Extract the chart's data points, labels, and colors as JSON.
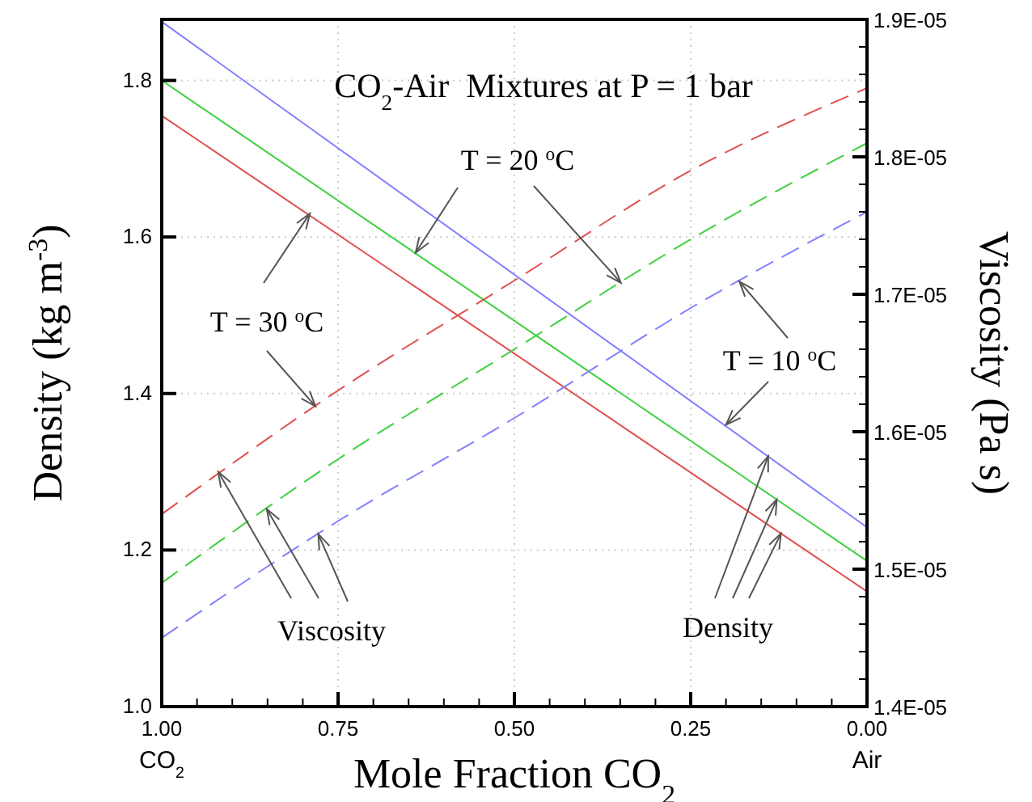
{
  "chart_data": {
    "type": "line",
    "title": "CO$_{2}$-Air  Mixtures at P = 1 bar",
    "xlabel": "Mole Fraction CO$_{2}$",
    "ylabel": "Density (kg m$^{-3}$)",
    "y2label": "Viscosity (Pa s)",
    "xlim": [
      1,
      0
    ],
    "xticks": [
      {
        "value": 1,
        "label": "1.00"
      },
      {
        "value": 0.95,
        "label": null
      },
      {
        "value": 0.9,
        "label": null
      },
      {
        "value": 0.85,
        "label": null
      },
      {
        "value": 0.8,
        "label": null
      },
      {
        "value": 0.75,
        "label": "0.75"
      },
      {
        "value": 0.7,
        "label": null
      },
      {
        "value": 0.65,
        "label": null
      },
      {
        "value": 0.6,
        "label": null
      },
      {
        "value": 0.55,
        "label": null
      },
      {
        "value": 0.5,
        "label": "0.50"
      },
      {
        "value": 0.45,
        "label": null
      },
      {
        "value": 0.4,
        "label": null
      },
      {
        "value": 0.35,
        "label": null
      },
      {
        "value": 0.3,
        "label": null
      },
      {
        "value": 0.25,
        "label": "0.25"
      },
      {
        "value": 0.2,
        "label": null
      },
      {
        "value": 0.15,
        "label": null
      },
      {
        "value": 0.1,
        "label": null
      },
      {
        "value": 0.05,
        "label": null
      },
      {
        "value": 0,
        "label": "0.00"
      }
    ],
    "ylim": [
      1.0,
      1.878
    ],
    "yticks": [
      {
        "value": 1,
        "label": "1.0"
      },
      1.2,
      1.4,
      1.6,
      1.8
    ],
    "y2lim": [
      1.4e-05,
      1.9e-05
    ],
    "y2ticks": [
      {
        "value": 1.4e-05,
        "label": "1.4E-05"
      },
      {
        "value": 1.42e-05,
        "label": null
      },
      {
        "value": 1.44e-05,
        "label": null
      },
      {
        "value": 1.46e-05,
        "label": null
      },
      {
        "value": 1.48e-05,
        "label": null
      },
      {
        "value": 1.5e-05,
        "label": "1.5E-05"
      },
      {
        "value": 1.52e-05,
        "label": null
      },
      {
        "value": 1.54e-05,
        "label": null
      },
      {
        "value": 1.56e-05,
        "label": null
      },
      {
        "value": 1.58e-05,
        "label": null
      },
      {
        "value": 1.6e-05,
        "label": "1.6E-05"
      },
      {
        "value": 1.62e-05,
        "label": null
      },
      {
        "value": 1.64e-05,
        "label": null
      },
      {
        "value": 1.66e-05,
        "label": null
      },
      {
        "value": 1.68e-05,
        "label": null
      },
      {
        "value": 1.7e-05,
        "label": "1.7E-05"
      },
      {
        "value": 1.72e-05,
        "label": null
      },
      {
        "value": 1.74e-05,
        "label": null
      },
      {
        "value": 1.76e-05,
        "label": null
      },
      {
        "value": 1.78e-05,
        "label": null
      },
      {
        "value": 1.8e-05,
        "label": "1.8E-05"
      },
      {
        "value": 1.82e-05,
        "label": null
      },
      {
        "value": 1.84e-05,
        "label": null
      },
      {
        "value": 1.86e-05,
        "label": null
      },
      {
        "value": 1.88e-05,
        "label": null
      },
      {
        "value": 1.9e-05,
        "label": "1.9E-05"
      }
    ],
    "grid": true,
    "marker": "none",
    "series": [
      {
        "color": "#8080ff",
        "line_style": "solid",
        "x": [
          1,
          0
        ],
        "values": [
          1.875,
          1.229
        ]
      },
      {
        "color": "#40d040",
        "line_style": "solid",
        "x": [
          1,
          0
        ],
        "values": [
          1.8,
          1.186
        ]
      },
      {
        "color": "#e05050",
        "line_style": "solid",
        "x": [
          1,
          0
        ],
        "values": [
          1.755,
          1.147
        ]
      },
      {
        "color": "#e05050",
        "line_style": "dashed",
        "axis": "y2",
        "x": [
          1,
          0.75,
          0.5,
          0.25,
          0
        ],
        "values": [
          1.54e-05,
          1.63e-05,
          1.71e-05,
          1.79e-05,
          1.85e-05
        ]
      },
      {
        "color": "#40d040",
        "line_style": "dashed",
        "axis": "y2",
        "x": [
          1,
          0.75,
          0.5,
          0.25,
          0
        ],
        "values": [
          1.49e-05,
          1.58e-05,
          1.66e-05,
          1.74e-05,
          1.81e-05
        ]
      },
      {
        "color": "#8080ff",
        "line_style": "dashed",
        "axis": "y2",
        "x": [
          1,
          0.75,
          0.5,
          0.25,
          0
        ],
        "values": [
          1.45e-05,
          1.535e-05,
          1.61e-05,
          1.69e-05,
          1.76e-05
        ]
      }
    ],
    "annotations": [
      {
        "text": "T = 20 $^{o}$C",
        "x": 0.64,
        "y": 1.58
      },
      {
        "text": "T = 30 $^{o}$C",
        "x": 0.79,
        "y": 1.63
      },
      {
        "text": "T = 10 $^{o}$C",
        "x": 0.2,
        "y": 1.36
      },
      {
        "text": "Viscosity",
        "x": 0.92,
        "y": 1.3
      },
      {
        "text": "Density",
        "x": 0.14,
        "y": 1.32
      },
      "CO$_{2}$",
      "Air"
    ]
  }
}
